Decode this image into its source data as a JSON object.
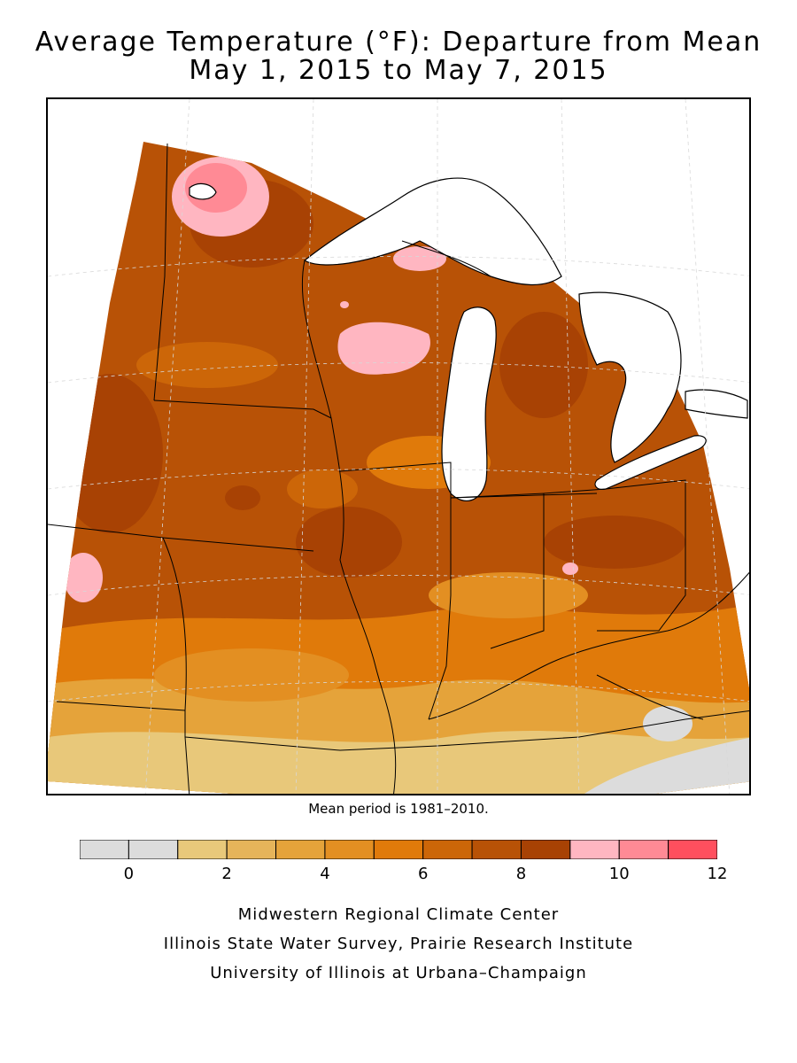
{
  "title_line1": "Average Temperature (°F): Departure from Mean",
  "title_line2": "May 1, 2015 to May 7, 2015",
  "mean_period": "Mean period is 1981–2010.",
  "legend": {
    "bins": [
      {
        "from": -1,
        "to": 0,
        "color": "#dcdcdc"
      },
      {
        "from": 0,
        "to": 1,
        "color": "#dcdcdc"
      },
      {
        "from": 1,
        "to": 2,
        "color": "#e8c87a"
      },
      {
        "from": 2,
        "to": 3,
        "color": "#e6b45a"
      },
      {
        "from": 3,
        "to": 4,
        "color": "#e5a33a"
      },
      {
        "from": 4,
        "to": 5,
        "color": "#e38f22"
      },
      {
        "from": 5,
        "to": 6,
        "color": "#e07a0a"
      },
      {
        "from": 6,
        "to": 7,
        "color": "#cc6608"
      },
      {
        "from": 7,
        "to": 8,
        "color": "#b85206"
      },
      {
        "from": 8,
        "to": 9,
        "color": "#a84204"
      },
      {
        "from": 9,
        "to": 10,
        "color": "#ffb6c1"
      },
      {
        "from": 10,
        "to": 11,
        "color": "#ff8a95"
      },
      {
        "from": 11,
        "to": 12,
        "color": "#ff4f5e"
      }
    ],
    "labels": [
      "0",
      "2",
      "4",
      "6",
      "8",
      "10",
      "12"
    ]
  },
  "credits": {
    "line1": "Midwestern Regional Climate Center",
    "line2": "Illinois State Water Survey, Prairie Research Institute",
    "line3": "University of Illinois at Urbana–Champaign"
  },
  "colors": {
    "lake": "#ffffff",
    "outline": "#000000"
  }
}
